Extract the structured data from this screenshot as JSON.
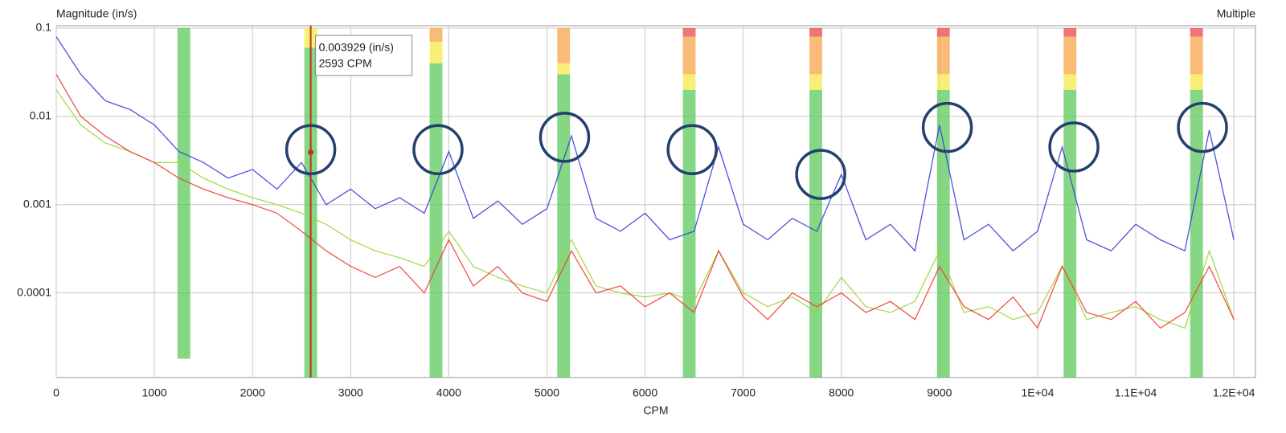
{
  "chart_data": {
    "type": "line",
    "y_label": "Magnitude (in/s)",
    "corner_label": "Multiple",
    "x_label": "CPM",
    "log_y": true,
    "grid": true,
    "xlim": [
      0,
      12220
    ],
    "ylim": [
      1.1e-05,
      0.1
    ],
    "xticks": [
      0,
      1000,
      2000,
      3000,
      4000,
      5000,
      6000,
      7000,
      8000,
      9000,
      {
        "value": 10000,
        "label": "1E+04"
      },
      {
        "value": 11000,
        "label": "1.1E+04"
      },
      {
        "value": 12000,
        "label": "1.2E+04"
      }
    ],
    "yticks": [
      0.1,
      0.01,
      0.001,
      0.0001
    ],
    "x": [
      0,
      250,
      500,
      750,
      1000,
      1250,
      1500,
      1750,
      2000,
      2250,
      2500,
      2750,
      3000,
      3250,
      3500,
      3750,
      4000,
      4250,
      4500,
      4750,
      5000,
      5250,
      5500,
      5750,
      6000,
      6250,
      6500,
      6750,
      7000,
      7250,
      7500,
      7750,
      8000,
      8250,
      8500,
      8750,
      9000,
      9250,
      9500,
      9750,
      10000,
      10250,
      10500,
      10750,
      11000,
      11250,
      11500,
      11750,
      12000
    ],
    "series": [
      {
        "color": "#3b3fd8",
        "values": [
          0.08,
          0.03,
          0.015,
          0.012,
          0.008,
          0.004,
          0.003,
          0.002,
          0.0025,
          0.0015,
          0.003,
          0.001,
          0.0015,
          0.0009,
          0.0012,
          0.0008,
          0.004,
          0.0007,
          0.0011,
          0.0006,
          0.0009,
          0.006,
          0.0007,
          0.0005,
          0.0008,
          0.0004,
          0.0005,
          0.0045,
          0.0006,
          0.0004,
          0.0007,
          0.0005,
          0.0022,
          0.0004,
          0.0006,
          0.0003,
          0.008,
          0.0004,
          0.0006,
          0.0003,
          0.0005,
          0.0045,
          0.0004,
          0.0003,
          0.0006,
          0.0004,
          0.0003,
          0.007,
          0.0004
        ]
      },
      {
        "color": "#9bd83a",
        "values": [
          0.02,
          0.008,
          0.005,
          0.004,
          0.003,
          0.003,
          0.002,
          0.0015,
          0.0012,
          0.001,
          0.0008,
          0.0006,
          0.0004,
          0.0003,
          0.00025,
          0.0002,
          0.0005,
          0.0002,
          0.00015,
          0.00012,
          0.0001,
          0.0004,
          0.00012,
          0.0001,
          9e-05,
          0.0001,
          8e-05,
          0.0003,
          0.0001,
          7e-05,
          9e-05,
          6e-05,
          0.00015,
          7e-05,
          6e-05,
          8e-05,
          0.0003,
          6e-05,
          7e-05,
          5e-05,
          6e-05,
          0.0002,
          5e-05,
          6e-05,
          7e-05,
          5e-05,
          4e-05,
          0.0003,
          5e-05
        ]
      },
      {
        "color": "#f0403a",
        "values": [
          0.03,
          0.01,
          0.006,
          0.004,
          0.003,
          0.002,
          0.0015,
          0.0012,
          0.001,
          0.0008,
          0.0005,
          0.0003,
          0.0002,
          0.00015,
          0.0002,
          0.0001,
          0.0004,
          0.00012,
          0.0002,
          0.0001,
          8e-05,
          0.0003,
          0.0001,
          0.00012,
          7e-05,
          0.0001,
          6e-05,
          0.0003,
          9e-05,
          5e-05,
          0.0001,
          7e-05,
          0.0001,
          6e-05,
          8e-05,
          5e-05,
          0.0002,
          7e-05,
          5e-05,
          9e-05,
          4e-05,
          0.0002,
          6e-05,
          5e-05,
          8e-05,
          4e-05,
          6e-05,
          0.0002,
          5e-05
        ]
      }
    ],
    "band_width": 130,
    "bands": [
      {
        "x": 1300,
        "from": 1.8e-05,
        "levels": [
          {
            "top": 0.1,
            "color": "#5cc85c"
          }
        ]
      },
      {
        "x": 2593,
        "from": 1.1e-05,
        "levels": [
          {
            "top": 0.06,
            "color": "#5cc85c"
          },
          {
            "top": 0.1,
            "color": "#f5e94a"
          }
        ]
      },
      {
        "x": 3870,
        "from": 1.1e-05,
        "levels": [
          {
            "top": 0.04,
            "color": "#5cc85c"
          },
          {
            "top": 0.07,
            "color": "#f5e94a"
          },
          {
            "top": 0.1,
            "color": "#f5a54a"
          }
        ]
      },
      {
        "x": 5170,
        "from": 1.1e-05,
        "levels": [
          {
            "top": 0.03,
            "color": "#5cc85c"
          },
          {
            "top": 0.04,
            "color": "#f5e94a"
          },
          {
            "top": 0.1,
            "color": "#f5a54a"
          }
        ]
      },
      {
        "x": 6450,
        "from": 1.1e-05,
        "levels": [
          {
            "top": 0.02,
            "color": "#5cc85c"
          },
          {
            "top": 0.03,
            "color": "#f5e94a"
          },
          {
            "top": 0.08,
            "color": "#f5a54a"
          },
          {
            "top": 0.1,
            "color": "#e8464a"
          }
        ]
      },
      {
        "x": 7740,
        "from": 1.1e-05,
        "levels": [
          {
            "top": 0.02,
            "color": "#5cc85c"
          },
          {
            "top": 0.03,
            "color": "#f5e94a"
          },
          {
            "top": 0.08,
            "color": "#f5a54a"
          },
          {
            "top": 0.1,
            "color": "#e8464a"
          }
        ]
      },
      {
        "x": 9040,
        "from": 1.1e-05,
        "levels": [
          {
            "top": 0.02,
            "color": "#5cc85c"
          },
          {
            "top": 0.03,
            "color": "#f5e94a"
          },
          {
            "top": 0.08,
            "color": "#f5a54a"
          },
          {
            "top": 0.1,
            "color": "#e8464a"
          }
        ]
      },
      {
        "x": 10330,
        "from": 1.1e-05,
        "levels": [
          {
            "top": 0.02,
            "color": "#5cc85c"
          },
          {
            "top": 0.03,
            "color": "#f5e94a"
          },
          {
            "top": 0.08,
            "color": "#f5a54a"
          },
          {
            "top": 0.1,
            "color": "#e8464a"
          }
        ]
      },
      {
        "x": 11620,
        "from": 1.1e-05,
        "levels": [
          {
            "top": 0.02,
            "color": "#5cc85c"
          },
          {
            "top": 0.03,
            "color": "#f5e94a"
          },
          {
            "top": 0.08,
            "color": "#f5a54a"
          },
          {
            "top": 0.1,
            "color": "#e8464a"
          }
        ]
      }
    ],
    "markers_color": "#23406e",
    "markers": [
      {
        "x": 2593,
        "y": 0.0042
      },
      {
        "x": 3890,
        "y": 0.0042
      },
      {
        "x": 5180,
        "y": 0.0058
      },
      {
        "x": 6480,
        "y": 0.0042
      },
      {
        "x": 7790,
        "y": 0.0022
      },
      {
        "x": 9080,
        "y": 0.0075
      },
      {
        "x": 10370,
        "y": 0.0045
      },
      {
        "x": 11680,
        "y": 0.0075
      }
    ],
    "cursor": {
      "x": 2593,
      "y": 0.003929,
      "color": "#c0301e",
      "labels": [
        "0.003929 (in/s)",
        "2593 CPM"
      ]
    }
  }
}
